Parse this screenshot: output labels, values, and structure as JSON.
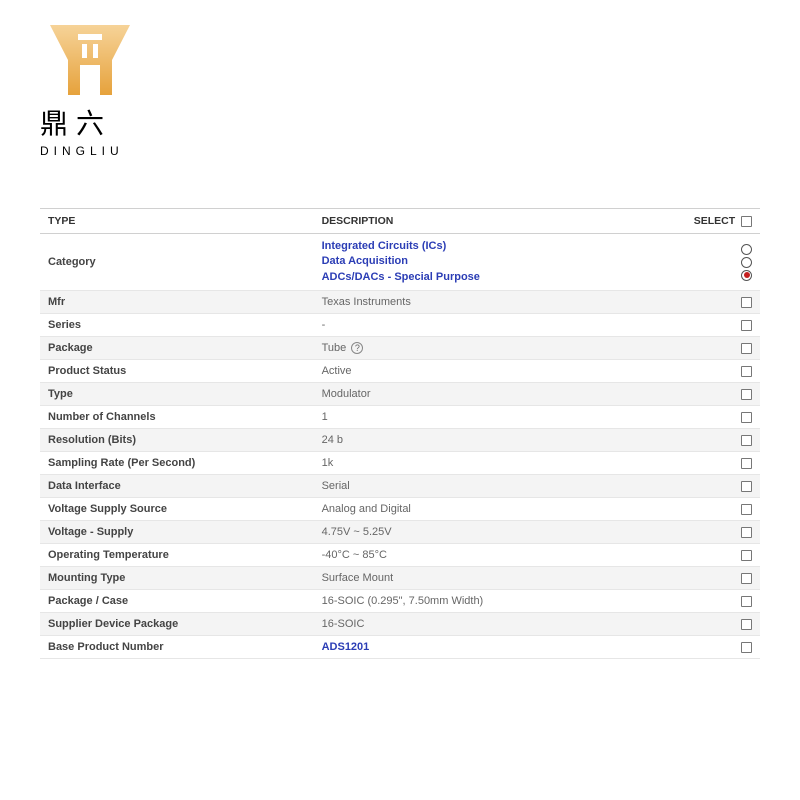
{
  "brand": {
    "cjk": "鼎六",
    "latin": "DINGLIU",
    "logo_color_light": "#f3c77a",
    "logo_color_dark": "#e6a23c"
  },
  "table": {
    "headers": {
      "type": "TYPE",
      "description": "DESCRIPTION",
      "select": "SELECT"
    },
    "category_row": {
      "label": "Category",
      "lines": [
        "Integrated Circuits (ICs)",
        "Data Acquisition",
        "ADCs/DACs - Special Purpose"
      ],
      "selected_index": 2
    },
    "rows": [
      {
        "label": "Mfr",
        "value": "Texas Instruments",
        "link": false,
        "help": false
      },
      {
        "label": "Series",
        "value": "-",
        "link": false,
        "help": false
      },
      {
        "label": "Package",
        "value": "Tube",
        "link": false,
        "help": true
      },
      {
        "label": "Product Status",
        "value": "Active",
        "link": false,
        "help": false
      },
      {
        "label": "Type",
        "value": "Modulator",
        "link": false,
        "help": false
      },
      {
        "label": "Number of Channels",
        "value": "1",
        "link": false,
        "help": false
      },
      {
        "label": "Resolution (Bits)",
        "value": "24 b",
        "link": false,
        "help": false
      },
      {
        "label": "Sampling Rate (Per Second)",
        "value": "1k",
        "link": false,
        "help": false
      },
      {
        "label": "Data Interface",
        "value": "Serial",
        "link": false,
        "help": false
      },
      {
        "label": "Voltage Supply Source",
        "value": "Analog and Digital",
        "link": false,
        "help": false
      },
      {
        "label": "Voltage - Supply",
        "value": "4.75V ~ 5.25V",
        "link": false,
        "help": false
      },
      {
        "label": "Operating Temperature",
        "value": "-40°C ~ 85°C",
        "link": false,
        "help": false
      },
      {
        "label": "Mounting Type",
        "value": "Surface Mount",
        "link": false,
        "help": false
      },
      {
        "label": "Package / Case",
        "value": "16-SOIC (0.295\", 7.50mm Width)",
        "link": false,
        "help": false
      },
      {
        "label": "Supplier Device Package",
        "value": "16-SOIC",
        "link": false,
        "help": false
      },
      {
        "label": "Base Product Number",
        "value": "ADS1201",
        "link": true,
        "help": false
      }
    ]
  },
  "colors": {
    "link": "#2b3db5",
    "row_alt": "#f4f4f4",
    "border": "#e6e6e6",
    "radio_selected": "#c62020"
  }
}
